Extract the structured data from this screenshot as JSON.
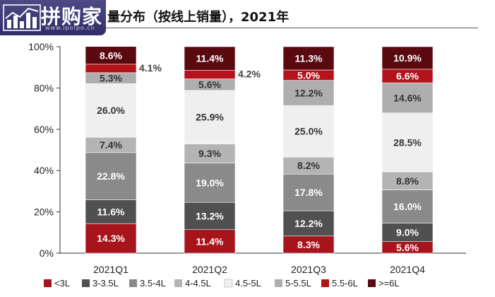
{
  "header": {
    "logo_text": "拼购家",
    "logo_url": "www.ipolpo.cn",
    "title": "量分布（按线上销量），2021年"
  },
  "chart_data": {
    "type": "bar",
    "stacked": true,
    "title": "量分布（按线上销量），2021年",
    "categories": [
      "2021Q1",
      "2021Q2",
      "2021Q3",
      "2021Q4"
    ],
    "series": [
      {
        "name": "<3L",
        "color": "#a8141c",
        "values": [
          14.3,
          11.4,
          8.3,
          5.6
        ],
        "labels": [
          "14.3%",
          "11.4%",
          "8.3%",
          "5.6%"
        ]
      },
      {
        "name": "3-3.5L",
        "color": "#505050",
        "values": [
          11.6,
          13.2,
          12.2,
          9.0
        ],
        "labels": [
          "11.6%",
          "13.2%",
          "12.2%",
          "9.0%"
        ]
      },
      {
        "name": "3.5-4L",
        "color": "#8a8a8a",
        "values": [
          22.8,
          19.0,
          17.8,
          16.0
        ],
        "labels": [
          "22.8%",
          "19.0%",
          "17.8%",
          "16.0%"
        ]
      },
      {
        "name": "4-4.5L",
        "color": "#b4b4b4",
        "values": [
          7.4,
          9.3,
          8.2,
          8.8
        ],
        "labels": [
          "7.4%",
          "9.3%",
          "8.2%",
          "8.8%"
        ]
      },
      {
        "name": "4.5-5L",
        "color": "#efefef",
        "values": [
          26.0,
          25.9,
          25.0,
          28.5
        ],
        "labels": [
          "26.0%",
          "25.9%",
          "25.0%",
          "28.5%"
        ]
      },
      {
        "name": "5-5.5L",
        "color": "#aeaeae",
        "values": [
          5.3,
          5.6,
          12.2,
          14.6
        ],
        "labels": [
          "5.3%",
          "5.6%",
          "12.2%",
          "14.6%"
        ]
      },
      {
        "name": "5.5-6L",
        "color": "#b5121b",
        "values": [
          4.1,
          4.2,
          5.0,
          6.6
        ],
        "labels": [
          "4.1%",
          "4.2%",
          "5.0%",
          "6.6%"
        ]
      },
      {
        "name": ">=6L",
        "color": "#5a0a0f",
        "values": [
          8.6,
          11.4,
          11.3,
          10.9
        ],
        "labels": [
          "8.6%",
          "11.4%",
          "11.3%",
          "10.9%"
        ]
      }
    ],
    "ylim": [
      0,
      100
    ],
    "yticks": [
      "0%",
      "20%",
      "40%",
      "60%",
      "80%",
      "100%"
    ],
    "legend": "bottom",
    "grid": false
  }
}
